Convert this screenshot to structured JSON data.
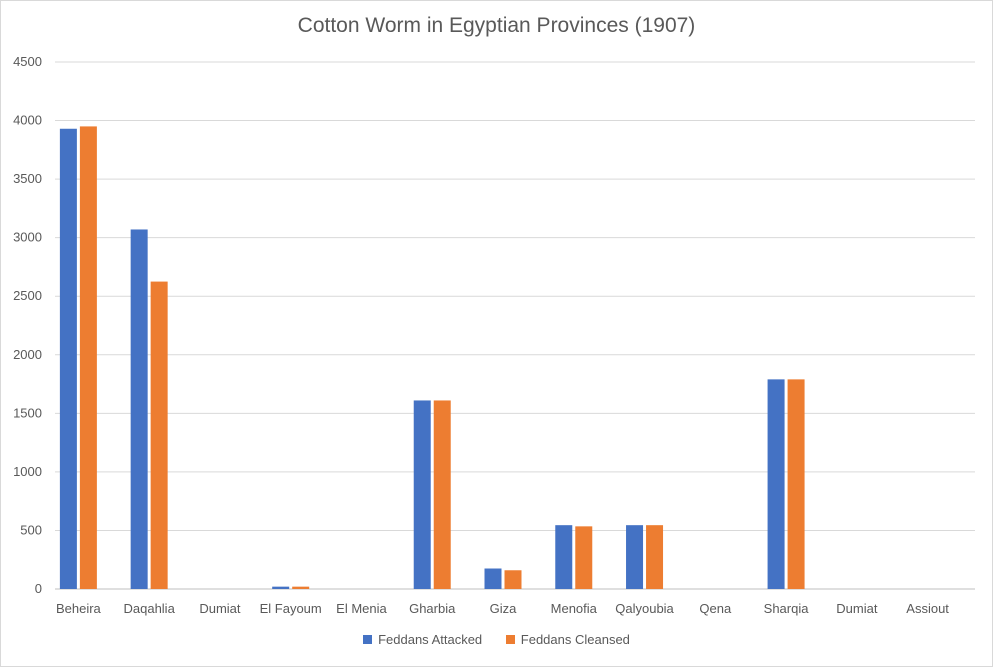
{
  "chart_data": {
    "type": "bar",
    "title": "Cotton Worm in Egyptian Provinces (1907)",
    "xlabel": "",
    "ylabel": "",
    "ylim": [
      0,
      4500
    ],
    "yticks": [
      0,
      500,
      1000,
      1500,
      2000,
      2500,
      3000,
      3500,
      4000,
      4500
    ],
    "grid": true,
    "legend_position": "bottom",
    "categories": [
      "Beheira",
      "Daqahlia",
      "Dumiat",
      "El Fayoum",
      "El Menia",
      "Gharbia",
      "Giza",
      "Menofia",
      "Qalyoubia",
      "Qena",
      "Sharqia",
      "Dumiat",
      "Assiout"
    ],
    "series": [
      {
        "name": "Feddans Attacked",
        "color": "#4472c4",
        "values": [
          3930,
          3070,
          0,
          20,
          0,
          1610,
          175,
          545,
          545,
          0,
          1790,
          0,
          0
        ]
      },
      {
        "name": "Feddans Cleansed",
        "color": "#ed7d31",
        "values": [
          3950,
          2625,
          0,
          20,
          0,
          1610,
          160,
          535,
          545,
          0,
          1790,
          0,
          0
        ]
      }
    ]
  }
}
